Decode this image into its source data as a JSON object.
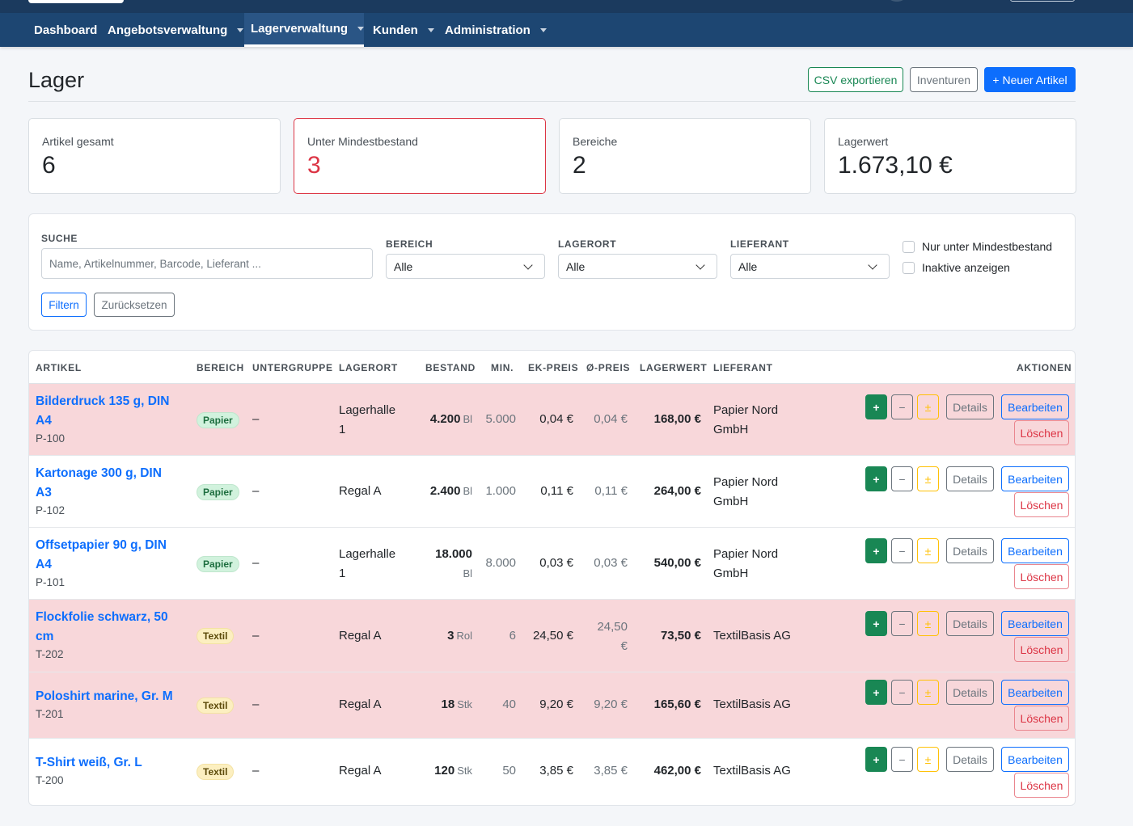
{
  "nav": {
    "items": [
      {
        "label": "Dashboard",
        "has_caret": false
      },
      {
        "label": "Angebotsverwaltung",
        "has_caret": true
      },
      {
        "label": "Lagerverwaltung",
        "has_caret": true,
        "active": true
      },
      {
        "label": "Kunden",
        "has_caret": true
      },
      {
        "label": "Administration",
        "has_caret": true
      }
    ]
  },
  "page": {
    "title": "Lager",
    "actions": {
      "csv_export": "CSV exportieren",
      "inventories": "Inventuren",
      "new_article": "+ Neuer Artikel"
    }
  },
  "stats": [
    {
      "label": "Artikel gesamt",
      "value": "6"
    },
    {
      "label": "Unter Mindestbestand",
      "value": "3",
      "highlight": "danger"
    },
    {
      "label": "Bereiche",
      "value": "2"
    },
    {
      "label": "Lagerwert",
      "value": "1.673,10 €"
    }
  ],
  "filters": {
    "search_label": "SUCHE",
    "search_placeholder": "Name, Artikelnummer, Barcode, Lieferant ...",
    "bereich_label": "BEREICH",
    "bereich_value": "Alle",
    "lagerort_label": "LAGERORT",
    "lagerort_value": "Alle",
    "lieferant_label": "LIEFERANT",
    "lieferant_value": "Alle",
    "check_min": "Nur unter Mindestbestand",
    "check_inactive": "Inaktive anzeigen",
    "filter_button": "Filtern",
    "reset_button": "Zurücksetzen"
  },
  "table": {
    "headers": {
      "artikel": "ARTIKEL",
      "bereich": "BEREICH",
      "untergruppe": "UNTERGRUPPE",
      "lagerort": "LAGERORT",
      "bestand": "BESTAND",
      "min": "MIN.",
      "ek": "EK-PREIS",
      "avg": "Ø-PREIS",
      "lagerwert": "LAGERWERT",
      "lieferant": "LIEFERANT",
      "aktionen": "AKTIONEN"
    },
    "action_labels": {
      "plus": "+",
      "minus": "−",
      "adjust": "±",
      "details": "Details",
      "edit": "Bearbeiten",
      "delete": "Löschen"
    },
    "rows": [
      {
        "name_line1": "Bilderdruck 135 g, DIN",
        "name_line2": "A4",
        "sku": "P-100",
        "bereich": "Papier",
        "untergruppe": "–",
        "lagerort_line1": "Lagerhalle",
        "lagerort_line2": "1",
        "bestand": "4.200",
        "unit": "Bl",
        "min": "5.000",
        "ek": "0,04 €",
        "avg": "0,04 €",
        "lagerwert": "168,00 €",
        "lieferant_line1": "Papier Nord",
        "lieferant_line2": "GmbH",
        "low": true
      },
      {
        "name_line1": "Kartonage 300 g, DIN",
        "name_line2": "A3",
        "sku": "P-102",
        "bereich": "Papier",
        "untergruppe": "–",
        "lagerort_line1": "Regal A",
        "lagerort_line2": "",
        "bestand": "2.400",
        "unit": "Bl",
        "min": "1.000",
        "ek": "0,11 €",
        "avg": "0,11 €",
        "lagerwert": "264,00 €",
        "lieferant_line1": "Papier Nord",
        "lieferant_line2": "GmbH",
        "low": false
      },
      {
        "name_line1": "Offsetpapier 90 g, DIN",
        "name_line2": "A4",
        "sku": "P-101",
        "bereich": "Papier",
        "untergruppe": "–",
        "lagerort_line1": "Lagerhalle",
        "lagerort_line2": "1",
        "bestand": "18.000",
        "unit": "Bl",
        "min": "8.000",
        "ek": "0,03 €",
        "avg": "0,03 €",
        "lagerwert": "540,00 €",
        "lieferant_line1": "Papier Nord",
        "lieferant_line2": "GmbH",
        "low": false
      },
      {
        "name_line1": "Flockfolie schwarz, 50",
        "name_line2": "cm",
        "sku": "T-202",
        "bereich": "Textil",
        "untergruppe": "–",
        "lagerort_line1": "Regal A",
        "lagerort_line2": "",
        "bestand": "3",
        "unit": "Rol",
        "min": "6",
        "ek": "24,50 €",
        "avg_line1": "24,50",
        "avg_line2": "€",
        "lagerwert": "73,50 €",
        "lieferant_line1": "TextilBasis AG",
        "lieferant_line2": "",
        "low": true
      },
      {
        "name_line1": "Poloshirt marine, Gr. M",
        "name_line2": "",
        "sku": "T-201",
        "bereich": "Textil",
        "untergruppe": "–",
        "lagerort_line1": "Regal A",
        "lagerort_line2": "",
        "bestand": "18",
        "unit": "Stk",
        "min": "40",
        "ek": "9,20 €",
        "avg": "9,20 €",
        "lagerwert": "165,60 €",
        "lieferant_line1": "TextilBasis AG",
        "lieferant_line2": "",
        "low": true
      },
      {
        "name_line1": "T-Shirt weiß, Gr. L",
        "name_line2": "",
        "sku": "T-200",
        "bereich": "Textil",
        "untergruppe": "–",
        "lagerort_line1": "Regal A",
        "lagerort_line2": "",
        "bestand": "120",
        "unit": "Stk",
        "min": "50",
        "ek": "3,85 €",
        "avg": "3,85 €",
        "lagerwert": "462,00 €",
        "lieferant_line1": "TextilBasis AG",
        "lieferant_line2": "",
        "low": false
      }
    ]
  }
}
